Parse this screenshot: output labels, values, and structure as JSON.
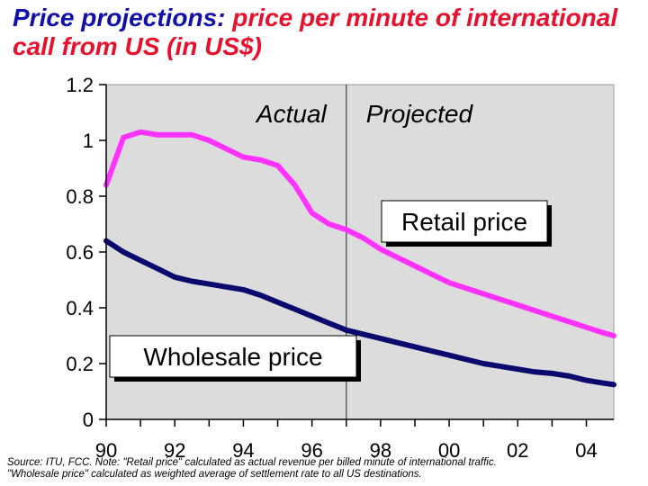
{
  "title": {
    "lead": "Price projections:",
    "rest": " price per minute of international call from US (in US$)"
  },
  "footnote": {
    "line1": "Source: ITU, FCC. Note: \"Retail price\" calculated as actual revenue per billed minute of international traffic.",
    "line2": "\"Wholesale price\" calculated as weighted average of settlement rate to all US destinations."
  },
  "chart_data": {
    "type": "line",
    "title": "Price projections: price per minute of international call from US (in US$)",
    "xlabel": "",
    "ylabel": "",
    "xlim": [
      1990,
      2004.8
    ],
    "ylim": [
      0,
      1.2
    ],
    "x_tick_labels": [
      "90",
      "92",
      "94",
      "96",
      "98",
      "00",
      "02",
      "04"
    ],
    "x_tick_values": [
      1990,
      1992,
      1994,
      1996,
      1998,
      2000,
      2002,
      2004
    ],
    "y_tick_labels": [
      "0",
      "0.2",
      "0.4",
      "0.6",
      "0.8",
      "1",
      "1.2"
    ],
    "y_tick_values": [
      0,
      0.2,
      0.4,
      0.6,
      0.8,
      1.0,
      1.2
    ],
    "grid": false,
    "plot_background": "#dcdcdc",
    "divider_x": 1997,
    "region_labels": [
      "Actual",
      "Projected"
    ],
    "series": [
      {
        "name": "Retail price",
        "color": "#ff33ff",
        "x": [
          1990,
          1990.5,
          1991,
          1991.5,
          1992,
          1992.5,
          1993,
          1993.5,
          1994,
          1994.5,
          1995,
          1995.5,
          1996,
          1996.5,
          1997,
          1997.5,
          1998,
          1998.5,
          1999,
          1999.5,
          2000,
          2000.5,
          2001,
          2001.5,
          2002,
          2002.5,
          2003,
          2003.5,
          2004,
          2004.5,
          2004.8
        ],
        "y": [
          0.84,
          1.01,
          1.03,
          1.02,
          1.02,
          1.02,
          1.0,
          0.97,
          0.94,
          0.93,
          0.91,
          0.84,
          0.74,
          0.7,
          0.68,
          0.65,
          0.61,
          0.58,
          0.55,
          0.52,
          0.49,
          0.47,
          0.45,
          0.43,
          0.41,
          0.39,
          0.37,
          0.35,
          0.33,
          0.31,
          0.3
        ]
      },
      {
        "name": "Wholesale price",
        "color": "#0a0a6e",
        "x": [
          1990,
          1990.5,
          1991,
          1991.5,
          1992,
          1992.5,
          1993,
          1993.5,
          1994,
          1994.5,
          1995,
          1995.5,
          1996,
          1996.5,
          1997,
          1997.5,
          1998,
          1998.5,
          1999,
          1999.5,
          2000,
          2000.5,
          2001,
          2001.5,
          2002,
          2002.5,
          2003,
          2003.5,
          2004,
          2004.5,
          2004.8
        ],
        "y": [
          0.64,
          0.6,
          0.57,
          0.54,
          0.51,
          0.495,
          0.485,
          0.475,
          0.465,
          0.445,
          0.42,
          0.395,
          0.37,
          0.345,
          0.32,
          0.305,
          0.29,
          0.275,
          0.26,
          0.245,
          0.23,
          0.215,
          0.2,
          0.19,
          0.18,
          0.17,
          0.165,
          0.155,
          0.14,
          0.13,
          0.125
        ]
      }
    ],
    "annotations": [
      {
        "text": "Retail price",
        "points_to": "Retail price"
      },
      {
        "text": "Wholesale price",
        "points_to": "Wholesale price"
      }
    ]
  }
}
